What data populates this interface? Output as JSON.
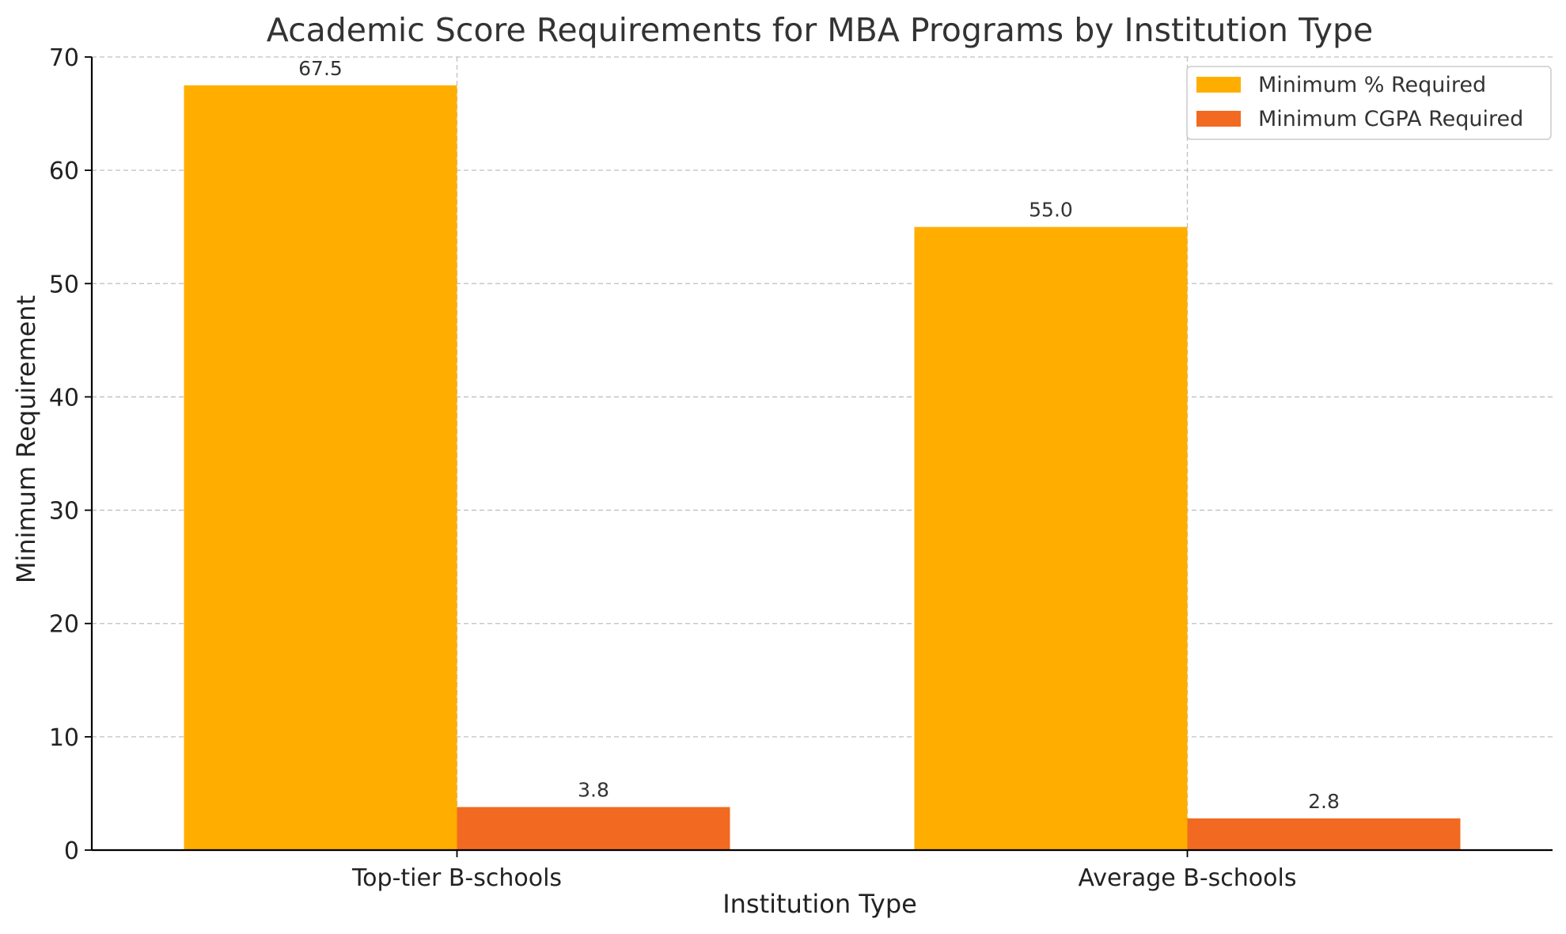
{
  "chart_data": {
    "type": "bar",
    "title": "Academic Score Requirements for MBA Programs by Institution Type",
    "xlabel": "Institution Type",
    "ylabel": "Minimum Requirement",
    "categories": [
      "Top-tier B-schools",
      "Average B-schools"
    ],
    "series": [
      {
        "name": "Minimum % Required",
        "values": [
          67.5,
          55.0
        ],
        "color": "#FFAE00",
        "labels": [
          "67.5",
          "55.0"
        ]
      },
      {
        "name": "Minimum CGPA Required",
        "values": [
          3.8,
          2.8
        ],
        "color": "#F26A21",
        "labels": [
          "3.8",
          "2.8"
        ]
      }
    ],
    "ylim": [
      0,
      70
    ],
    "yticks": [
      0,
      10,
      20,
      30,
      40,
      50,
      60,
      70
    ],
    "grid": true,
    "legend_position": "top-right"
  }
}
